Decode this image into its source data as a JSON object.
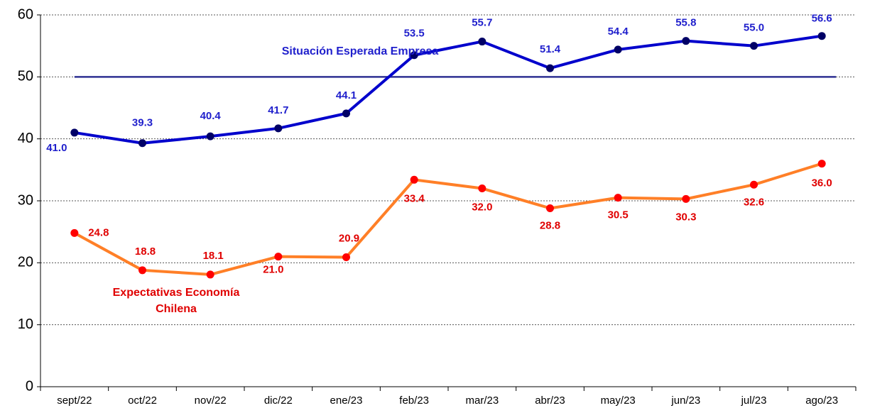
{
  "chart_data": {
    "type": "line",
    "categories": [
      "sept/22",
      "oct/22",
      "nov/22",
      "dic/22",
      "ene/23",
      "feb/23",
      "mar/23",
      "abr/23",
      "may/23",
      "jun/23",
      "jul/23",
      "ago/23"
    ],
    "series": [
      {
        "name": "Situación Esperada Empresa",
        "color": "#0000cc",
        "marker_color": "#000066",
        "label_color": "#1f1fcc",
        "values": [
          41.0,
          39.3,
          40.4,
          41.7,
          44.1,
          53.5,
          55.7,
          51.4,
          54.4,
          55.8,
          55.0,
          56.6
        ],
        "value_labels": [
          "41.0",
          "39.3",
          "40.4",
          "41.7",
          "44.1",
          "53.5",
          "55.7",
          "51.4",
          "54.4",
          "55.8",
          "55.0",
          "56.6"
        ]
      },
      {
        "name": "Expectativas Economía Chilena",
        "color": "#ff7f27",
        "marker_color": "#ff0000",
        "label_color": "#e00000",
        "values": [
          24.8,
          18.8,
          18.1,
          21.0,
          20.9,
          33.4,
          32.0,
          28.8,
          30.5,
          30.3,
          32.6,
          36.0
        ],
        "value_labels": [
          "24.8",
          "18.8",
          "18.1",
          "21.0",
          "20.9",
          "33.4",
          "32.0",
          "28.8",
          "30.5",
          "30.3",
          "32.6",
          "36.0"
        ]
      }
    ],
    "reference_line": 50,
    "reference_color": "#2e3192",
    "ylim": [
      0,
      60
    ],
    "yticks": [
      0,
      10,
      20,
      30,
      40,
      50,
      60
    ],
    "grid": true
  }
}
